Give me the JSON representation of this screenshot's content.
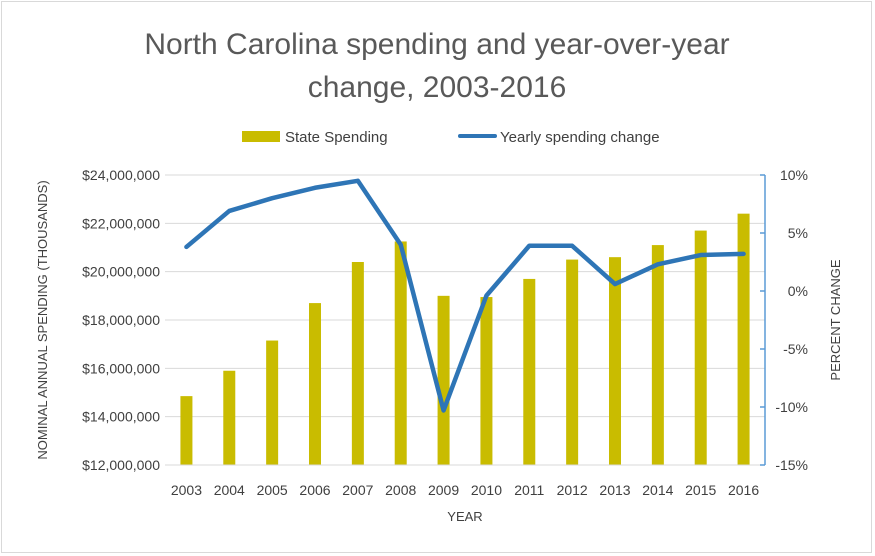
{
  "chart_data": {
    "type": "bar+line",
    "title_lines": [
      "North Carolina spending and year-over-year",
      "change, 2003-2016"
    ],
    "categories": [
      "2003",
      "2004",
      "2005",
      "2006",
      "2007",
      "2008",
      "2009",
      "2010",
      "2011",
      "2012",
      "2013",
      "2014",
      "2015",
      "2016"
    ],
    "series": [
      {
        "name": "State Spending",
        "type": "bar",
        "axis": "left",
        "color": "#c9bc00",
        "values": [
          14850000,
          15900000,
          17150000,
          18700000,
          20400000,
          21250000,
          19000000,
          18950000,
          19700000,
          20500000,
          20600000,
          21100000,
          21700000,
          22400000
        ]
      },
      {
        "name": "Yearly spending change",
        "type": "line",
        "axis": "right",
        "color": "#2e75b6",
        "values": [
          3.8,
          6.9,
          8.0,
          8.9,
          9.5,
          4.0,
          -10.3,
          -0.4,
          3.9,
          3.9,
          0.6,
          2.3,
          3.1,
          3.2
        ]
      }
    ],
    "xlabel": "YEAR",
    "ylabel_left": "NOMINAL ANNUAL SPENDING (THOUSANDS)",
    "ylabel_right": "PERCENT CHANGE",
    "ylim_left": [
      12000000,
      24000000
    ],
    "ylim_right": [
      -15,
      10
    ],
    "left_ticks": [
      "$12,000,000",
      "$14,000,000",
      "$16,000,000",
      "$18,000,000",
      "$20,000,000",
      "$22,000,000",
      "$24,000,000"
    ],
    "right_ticks": [
      "-15%",
      "-10%",
      "-5%",
      "0%",
      "5%",
      "10%"
    ],
    "grid": true,
    "legend_position": "top"
  }
}
